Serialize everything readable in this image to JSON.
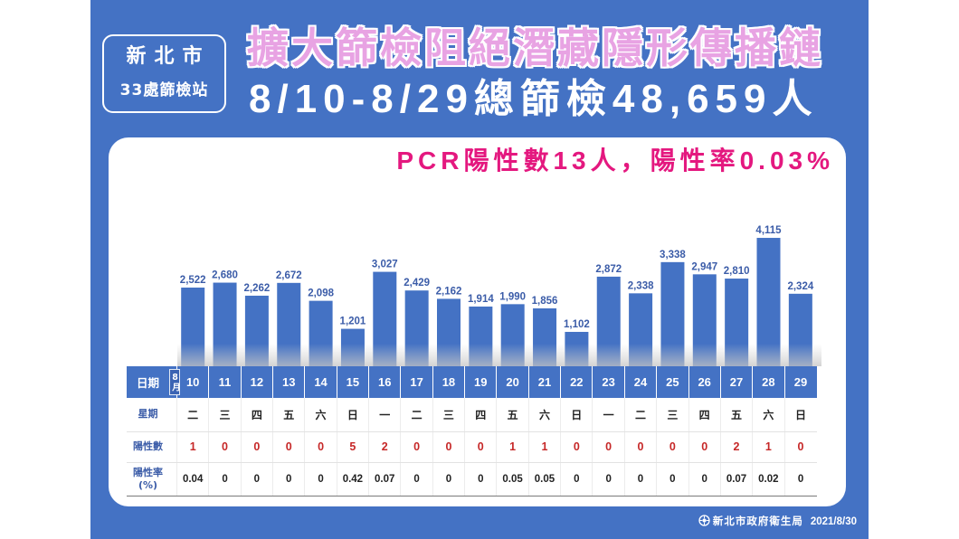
{
  "badge": {
    "city": "新北市",
    "stations": "33處篩檢站"
  },
  "headline": {
    "title": "擴大篩檢阻絕潛藏隱形傳播鏈",
    "summary": "8/10-8/29總篩檢48,659人"
  },
  "pcr_summary": "PCR陽性數13人，陽性率0.03%",
  "colors": {
    "panel_blue": "#4472c4",
    "bar_blue": "#4472c4",
    "title_pink": "#e8a3e3",
    "highlight_magenta": "#e4187f",
    "positive_red": "#c62828",
    "label_blue": "#3b5ca8"
  },
  "chart_data": {
    "type": "bar",
    "categories": [
      "10",
      "11",
      "12",
      "13",
      "14",
      "15",
      "16",
      "17",
      "18",
      "19",
      "20",
      "21",
      "22",
      "23",
      "24",
      "25",
      "26",
      "27",
      "28",
      "29"
    ],
    "series": [
      {
        "values": [
          2522,
          2680,
          2262,
          2672,
          2098,
          1201,
          3027,
          2429,
          2162,
          1914,
          1990,
          1856,
          1102,
          2872,
          2338,
          3338,
          2947,
          2810,
          4115,
          2324
        ],
        "data_labels": [
          "2,522",
          "2,680",
          "2,262",
          "2,672",
          "2,098",
          "1,201",
          "3,027",
          "2,429",
          "2,162",
          "1,914",
          "1,990",
          "1,856",
          "1,102",
          "2,872",
          "2,338",
          "3,338",
          "2,947",
          "2,810",
          "4,115",
          "2,324"
        ]
      }
    ],
    "grid": false
  },
  "table": {
    "date_label": "日期",
    "month_label": "8月",
    "weekday_label": "星期",
    "weekdays": [
      "二",
      "三",
      "四",
      "五",
      "六",
      "日",
      "一",
      "二",
      "三",
      "四",
      "五",
      "六",
      "日",
      "一",
      "二",
      "三",
      "四",
      "五",
      "六",
      "日"
    ],
    "positive_label": "陽性數",
    "positives": [
      "1",
      "0",
      "0",
      "0",
      "0",
      "5",
      "2",
      "0",
      "0",
      "0",
      "1",
      "1",
      "0",
      "0",
      "0",
      "0",
      "0",
      "2",
      "1",
      "0"
    ],
    "rate_label": "陽性率",
    "rate_unit": "(%)",
    "rates": [
      "0.04",
      "0",
      "0",
      "0",
      "0",
      "0.42",
      "0.07",
      "0",
      "0",
      "0",
      "0.05",
      "0.05",
      "0",
      "0",
      "0",
      "0",
      "0",
      "0.07",
      "0.02",
      "0"
    ]
  },
  "footer": {
    "logo_icon": "health-bureau-emblem-icon",
    "agency": "新北市政府衛生局",
    "date": "2021/8/30"
  }
}
